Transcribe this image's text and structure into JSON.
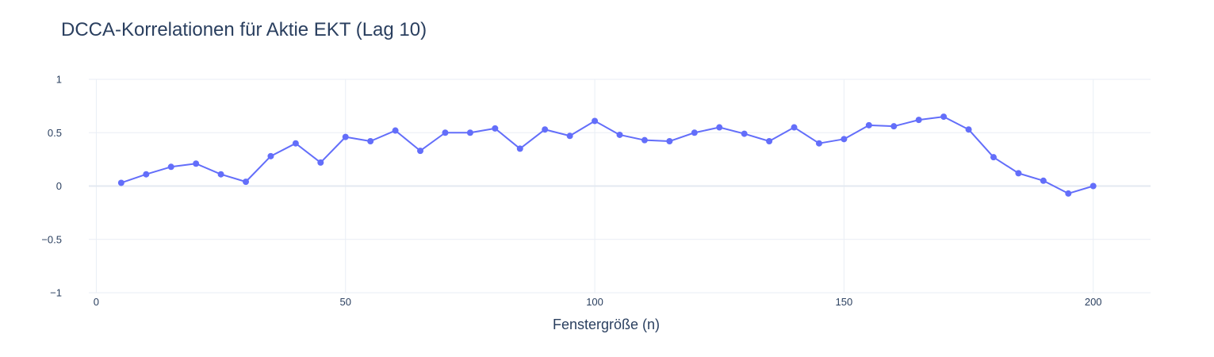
{
  "chart_data": {
    "type": "line",
    "title": "DCCA-Korrelationen für Aktie EKT (Lag 10)",
    "xlabel": "Fenstergröße (n)",
    "ylabel": "",
    "xlim": [
      -1.5,
      211.5
    ],
    "ylim": [
      -1,
      1
    ],
    "x_ticks": [
      "0",
      "50",
      "100",
      "150",
      "200"
    ],
    "y_ticks": [
      "1",
      "0.5",
      "0",
      "−0.5",
      "−1"
    ],
    "grid": true,
    "legend": "none",
    "color": "#636efa",
    "series": [
      {
        "mode": "lines+markers",
        "x": [
          5,
          10,
          15,
          20,
          25,
          30,
          35,
          40,
          45,
          50,
          55,
          60,
          65,
          70,
          75,
          80,
          85,
          90,
          95,
          100,
          105,
          110,
          115,
          120,
          125,
          130,
          135,
          140,
          145,
          150,
          155,
          160,
          165,
          170,
          175,
          180,
          185,
          190,
          195,
          200
        ],
        "y": [
          0.03,
          0.11,
          0.18,
          0.21,
          0.11,
          0.04,
          0.28,
          0.4,
          0.22,
          0.46,
          0.42,
          0.52,
          0.33,
          0.5,
          0.5,
          0.54,
          0.35,
          0.53,
          0.47,
          0.61,
          0.48,
          0.43,
          0.42,
          0.5,
          0.55,
          0.49,
          0.42,
          0.55,
          0.4,
          0.44,
          0.57,
          0.56,
          0.62,
          0.65,
          0.53,
          0.27,
          0.12,
          0.05,
          -0.07,
          0.0
        ]
      }
    ]
  }
}
